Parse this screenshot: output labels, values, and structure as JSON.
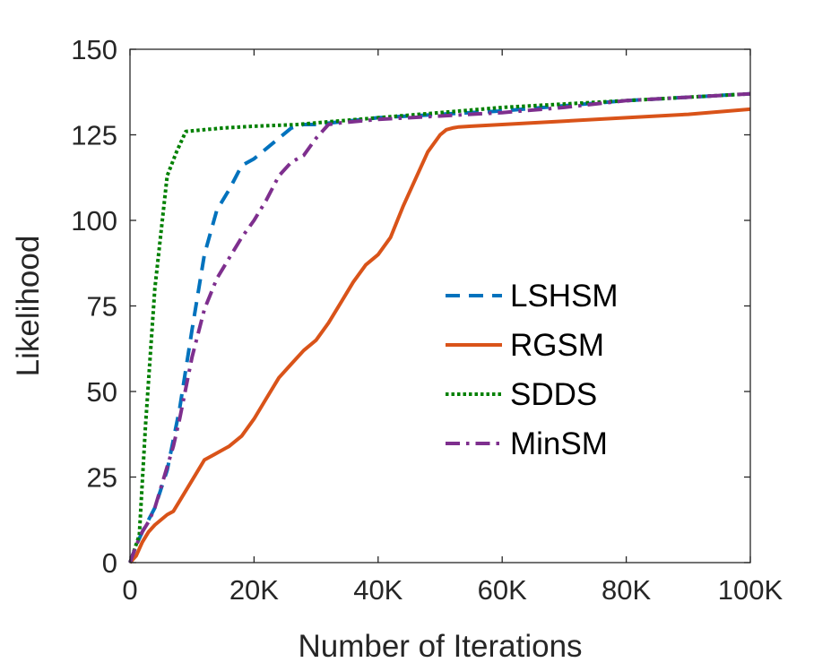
{
  "chart_data": {
    "type": "line",
    "title": "",
    "xlabel": "Number of Iterations",
    "ylabel": "Likelihood",
    "xlim": [
      0,
      100000
    ],
    "ylim": [
      0,
      150
    ],
    "xticks": [
      0,
      20000,
      40000,
      60000,
      80000,
      100000
    ],
    "xtick_labels": [
      "0",
      "20K",
      "40K",
      "60K",
      "80K",
      "100K"
    ],
    "yticks": [
      0,
      25,
      50,
      75,
      100,
      125,
      150
    ],
    "ytick_labels": [
      "0",
      "25",
      "50",
      "75",
      "100",
      "125",
      "150"
    ],
    "grid": false,
    "legend_position": "center-right",
    "series": [
      {
        "name": "LSHSM",
        "color": "#0072BD",
        "style": "dashed",
        "x": [
          0,
          1000,
          2000,
          4000,
          6000,
          8000,
          10000,
          12000,
          14000,
          16000,
          18000,
          20000,
          22000,
          24000,
          26000,
          28000,
          30000,
          40000,
          50000,
          60000,
          70000,
          80000,
          90000,
          100000
        ],
        "y": [
          0,
          5,
          9,
          16,
          27,
          45,
          68,
          90,
          103,
          109,
          116,
          118,
          121,
          124,
          127,
          128,
          128,
          130,
          131,
          132,
          133.5,
          135,
          136,
          137
        ]
      },
      {
        "name": "RGSM",
        "color": "#D95319",
        "style": "solid",
        "x": [
          0,
          1000,
          2000,
          3000,
          4000,
          6000,
          7000,
          8000,
          10000,
          12000,
          14000,
          16000,
          18000,
          20000,
          22000,
          24000,
          26000,
          28000,
          30000,
          32000,
          34000,
          36000,
          38000,
          40000,
          42000,
          44000,
          46000,
          48000,
          50000,
          51000,
          52000,
          53000,
          55000,
          60000,
          70000,
          80000,
          90000,
          100000
        ],
        "y": [
          0,
          2,
          6,
          9,
          11,
          14,
          15,
          18,
          24,
          30,
          32,
          34,
          37,
          42,
          48,
          54,
          58,
          62,
          65,
          70,
          76,
          82,
          87,
          90,
          95,
          104,
          112,
          120,
          125,
          126.5,
          127,
          127.3,
          127.5,
          128,
          129,
          130,
          131,
          132.5
        ]
      },
      {
        "name": "SDDS",
        "color": "#008000",
        "style": "dotted",
        "x": [
          0,
          1500,
          2500,
          4000,
          6000,
          7500,
          9000,
          12000,
          15000,
          20000,
          27000,
          30000,
          40000,
          50000,
          60000,
          70000,
          80000,
          90000,
          100000
        ],
        "y": [
          0,
          8,
          40,
          80,
          113,
          120,
          126,
          126.5,
          127,
          127.5,
          128,
          128.5,
          130,
          131.5,
          133,
          134,
          135,
          136,
          137
        ]
      },
      {
        "name": "MinSM",
        "color": "#7E2F8E",
        "style": "dashdot",
        "x": [
          0,
          1000,
          2000,
          3000,
          4000,
          5000,
          6000,
          7000,
          8000,
          10000,
          12000,
          14000,
          16000,
          18000,
          20000,
          22000,
          24000,
          26000,
          28000,
          30000,
          32000,
          34000,
          40000,
          50000,
          60000,
          70000,
          80000,
          90000,
          100000
        ],
        "y": [
          0,
          5,
          9,
          12,
          16,
          22,
          28,
          34,
          42,
          60,
          74,
          83,
          89,
          95,
          100,
          106,
          113,
          117,
          119,
          124,
          128,
          128.5,
          129.5,
          130.5,
          131.5,
          133,
          135,
          136,
          137
        ]
      }
    ]
  }
}
